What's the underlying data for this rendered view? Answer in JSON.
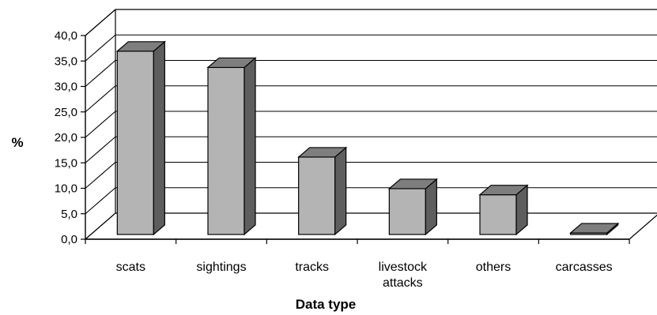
{
  "chart_data": {
    "type": "bar",
    "style": "3d",
    "categories": [
      "scats",
      "sightings",
      "tracks",
      "livestock attacks",
      "others",
      "carcasses"
    ],
    "category_lines": [
      [
        "scats"
      ],
      [
        "sightings"
      ],
      [
        "tracks"
      ],
      [
        "livestock",
        "attacks"
      ],
      [
        "others"
      ],
      [
        "carcasses"
      ]
    ],
    "values": [
      36.0,
      32.8,
      15.2,
      9.0,
      7.8,
      0.3
    ],
    "xlabel": "Data type",
    "ylabel": "%",
    "ylim": [
      0,
      40
    ],
    "yticks": [
      "0,0",
      "5,0",
      "10,0",
      "15,0",
      "20,0",
      "25,0",
      "30,0",
      "35,0",
      "40,0"
    ],
    "grid": true,
    "legend": "none",
    "colors": {
      "bar_front": "#b4b4b4",
      "bar_top": "#7e7e7e",
      "bar_side": "#5e5e5e",
      "grid": "#000000",
      "background": "#ffffff"
    }
  }
}
